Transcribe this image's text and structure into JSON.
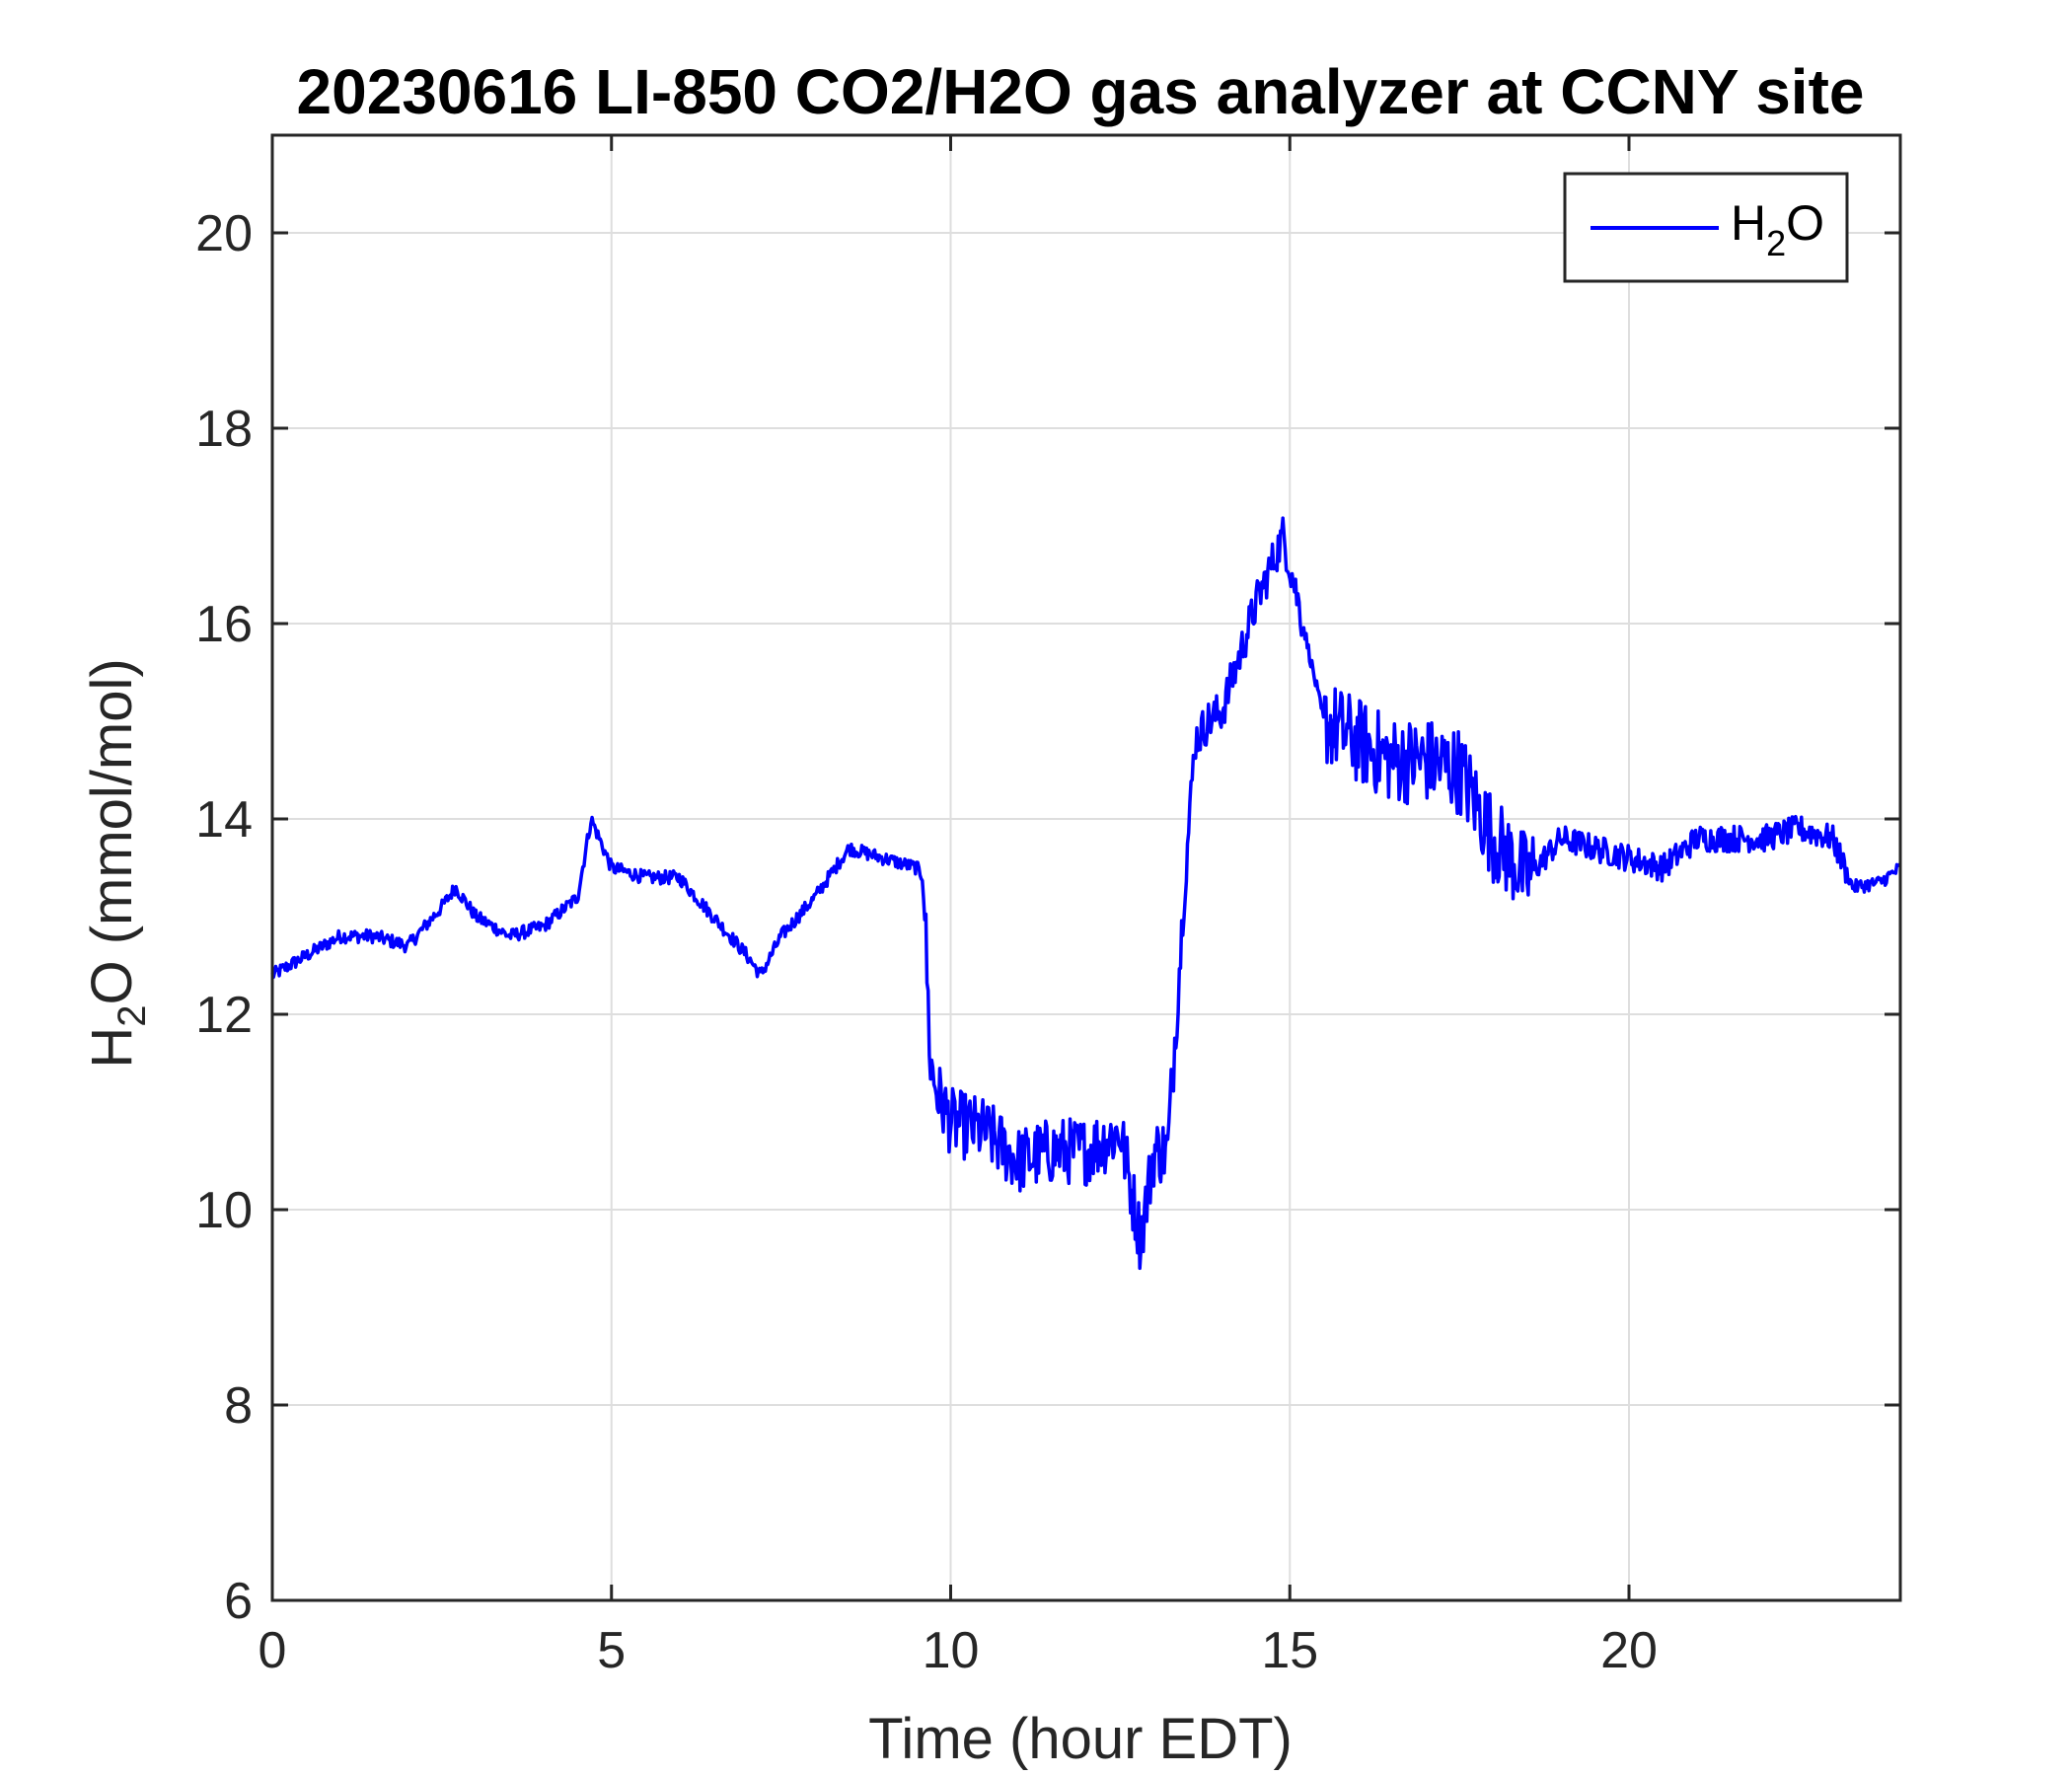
{
  "chart_data": {
    "type": "line",
    "title": "20230616 LI-850 CO2/H2O gas analyzer at CCNY site",
    "xlabel": "Time (hour EDT)",
    "ylabel": {
      "main": "H",
      "sub": "2",
      "rest": "O (mmol/mol)"
    },
    "xlim": [
      0,
      24
    ],
    "ylim": [
      6,
      21
    ],
    "xticks": [
      0,
      5,
      10,
      15,
      20
    ],
    "yticks": [
      6,
      8,
      10,
      12,
      14,
      16,
      18,
      20
    ],
    "grid": true,
    "legend_placement": "top-right",
    "line_color": "#0000ff",
    "series": [
      {
        "name": {
          "main": "H",
          "sub": "2",
          "rest": "O"
        },
        "x": [
          0,
          0.5,
          1,
          1.5,
          2,
          2.5,
          2.7,
          3,
          3.5,
          4,
          4.5,
          4.7,
          5,
          5.5,
          6,
          6.5,
          7,
          7.2,
          7.5,
          8,
          8.5,
          9,
          9.5,
          9.6,
          9.7,
          9.8,
          10,
          10.5,
          11,
          11.5,
          12,
          12.5,
          12.8,
          13,
          13.2,
          13.4,
          13.6,
          13.8,
          14,
          14.5,
          14.9,
          15.1,
          15.5,
          16,
          16.5,
          17,
          17.5,
          18,
          18.5,
          19,
          19.5,
          20,
          20.5,
          21,
          21.5,
          22,
          22.5,
          23,
          23.3,
          23.7,
          24
        ],
        "values": [
          12.4,
          12.6,
          12.8,
          12.8,
          12.7,
          13.1,
          13.3,
          13.0,
          12.8,
          12.9,
          13.2,
          14.0,
          13.5,
          13.4,
          13.4,
          13.0,
          12.6,
          12.4,
          12.8,
          13.2,
          13.7,
          13.6,
          13.5,
          13.4,
          11.5,
          11.2,
          10.9,
          10.8,
          10.5,
          10.6,
          10.6,
          10.8,
          9.7,
          10.6,
          10.6,
          12.8,
          14.8,
          15.0,
          15.1,
          16.2,
          16.9,
          16.3,
          15.0,
          14.8,
          14.6,
          14.6,
          14.5,
          13.8,
          13.4,
          13.8,
          13.7,
          13.6,
          13.5,
          13.8,
          13.8,
          13.8,
          13.9,
          13.8,
          13.3,
          13.35,
          13.5
        ]
      }
    ]
  }
}
